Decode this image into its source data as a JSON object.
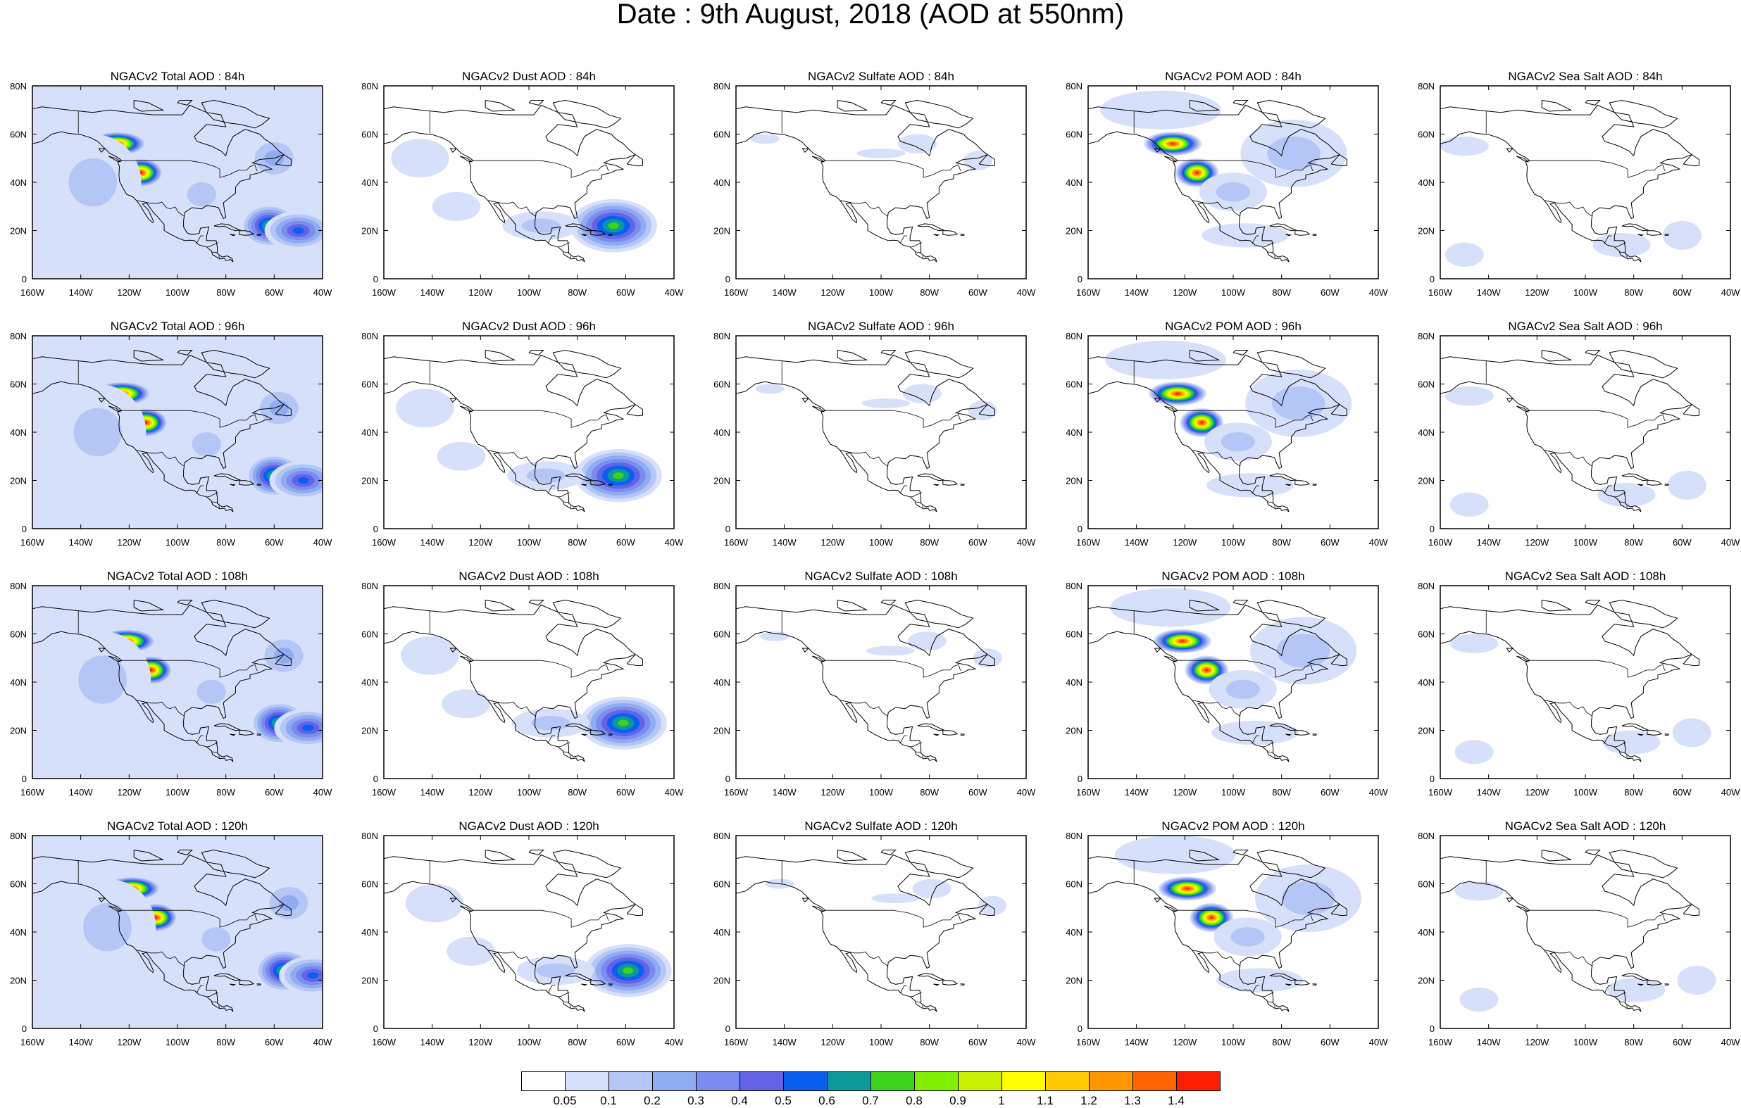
{
  "title": "Date : 9th August, 2018 (AOD at 550nm)",
  "axes": {
    "x_ticks": [
      "160W",
      "140W",
      "120W",
      "100W",
      "80W",
      "60W",
      "40W"
    ],
    "y_ticks": [
      "80N",
      "60N",
      "40N",
      "20N",
      "0"
    ]
  },
  "panels": [
    {
      "title": "NGACv2 Total AOD : 84h",
      "species": "total",
      "hour": 84
    },
    {
      "title": "NGACv2 Dust AOD : 84h",
      "species": "dust",
      "hour": 84
    },
    {
      "title": "NGACv2 Sulfate AOD : 84h",
      "species": "sulfate",
      "hour": 84
    },
    {
      "title": "NGACv2 POM AOD : 84h",
      "species": "pom",
      "hour": 84
    },
    {
      "title": "NGACv2 Sea Salt AOD : 84h",
      "species": "seasalt",
      "hour": 84
    },
    {
      "title": "NGACv2 Total AOD : 96h",
      "species": "total",
      "hour": 96
    },
    {
      "title": "NGACv2 Dust AOD : 96h",
      "species": "dust",
      "hour": 96
    },
    {
      "title": "NGACv2 Sulfate AOD : 96h",
      "species": "sulfate",
      "hour": 96
    },
    {
      "title": "NGACv2 POM AOD : 96h",
      "species": "pom",
      "hour": 96
    },
    {
      "title": "NGACv2 Sea Salt AOD : 96h",
      "species": "seasalt",
      "hour": 96
    },
    {
      "title": "NGACv2 Total AOD : 108h",
      "species": "total",
      "hour": 108
    },
    {
      "title": "NGACv2 Dust AOD : 108h",
      "species": "dust",
      "hour": 108
    },
    {
      "title": "NGACv2 Sulfate AOD : 108h",
      "species": "sulfate",
      "hour": 108
    },
    {
      "title": "NGACv2 POM AOD : 108h",
      "species": "pom",
      "hour": 108
    },
    {
      "title": "NGACv2 Sea Salt AOD : 108h",
      "species": "seasalt",
      "hour": 108
    },
    {
      "title": "NGACv2 Total AOD : 120h",
      "species": "total",
      "hour": 120
    },
    {
      "title": "NGACv2 Dust AOD : 120h",
      "species": "dust",
      "hour": 120
    },
    {
      "title": "NGACv2 Sulfate AOD : 120h",
      "species": "sulfate",
      "hour": 120
    },
    {
      "title": "NGACv2 POM AOD : 120h",
      "species": "pom",
      "hour": 120
    },
    {
      "title": "NGACv2 Sea Salt  AOD : 120h",
      "species": "seasalt",
      "hour": 120
    }
  ],
  "colorbar": {
    "labels": [
      "0.05",
      "0.1",
      "0.2",
      "0.3",
      "0.4",
      "0.5",
      "0.6",
      "0.7",
      "0.8",
      "0.9",
      "1",
      "1.1",
      "1.2",
      "1.3",
      "1.4"
    ],
    "colors": [
      "#ffffff",
      "#d6e0fa",
      "#b4c6f6",
      "#8fabf2",
      "#7b8cee",
      "#6363e8",
      "#0a5ff0",
      "#0a9a9a",
      "#3cd21e",
      "#80f000",
      "#c8f000",
      "#ffff00",
      "#ffc800",
      "#ff9600",
      "#ff6400",
      "#ff1e00"
    ]
  }
}
